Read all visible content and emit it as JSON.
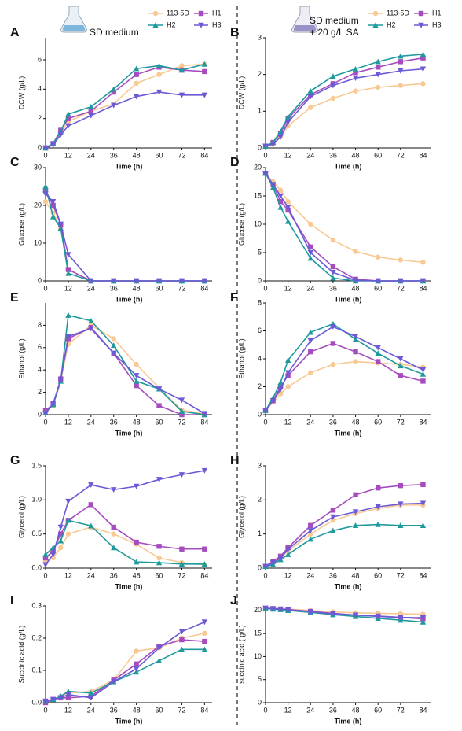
{
  "chart_data": [
    {
      "type": "line",
      "label": "A",
      "annotations": [
        "SD medium"
      ],
      "legend": true,
      "x_label": "Time (h)",
      "y_label": "DCW (g/L)",
      "x": [
        0,
        4,
        8,
        12,
        24,
        36,
        48,
        60,
        72,
        84
      ],
      "xlim": [
        0,
        88
      ],
      "xticks": [
        0,
        12,
        24,
        36,
        48,
        60,
        72,
        84
      ],
      "ylim": [
        0,
        7.5
      ],
      "yticks": [
        0,
        2,
        4,
        6
      ],
      "series": [
        {
          "name": "113-5D",
          "color": "#f8c994",
          "marker": "circle",
          "values": [
            0,
            0.3,
            1.0,
            1.8,
            2.5,
            3.0,
            4.4,
            5.0,
            5.6,
            5.7
          ]
        },
        {
          "name": "H1",
          "color": "#a64cbf",
          "marker": "square",
          "values": [
            0,
            0.3,
            1.2,
            2.0,
            2.5,
            3.8,
            5.0,
            5.5,
            5.3,
            5.2
          ]
        },
        {
          "name": "H2",
          "color": "#1f9a9c",
          "marker": "triangle-up",
          "values": [
            0,
            0.3,
            1.1,
            2.3,
            2.8,
            4.0,
            5.4,
            5.6,
            5.3,
            5.7
          ]
        },
        {
          "name": "H3",
          "color": "#6a5ad6",
          "marker": "triangle-down",
          "values": [
            0,
            0.2,
            0.9,
            1.5,
            2.2,
            2.9,
            3.5,
            3.8,
            3.6,
            3.6
          ]
        }
      ]
    },
    {
      "type": "line",
      "label": "B",
      "annotations": [
        "SD medium",
        "+ 20 g/L SA"
      ],
      "legend": true,
      "x_label": "Time (h)",
      "y_label": "DCW (g/L)",
      "x": [
        0,
        4,
        8,
        12,
        24,
        36,
        48,
        60,
        72,
        84
      ],
      "xlim": [
        0,
        88
      ],
      "xticks": [
        0,
        12,
        24,
        36,
        48,
        60,
        72,
        84
      ],
      "ylim": [
        0,
        3
      ],
      "yticks": [
        0,
        1,
        2,
        3
      ],
      "series": [
        {
          "name": "113-5D",
          "color": "#f8c994",
          "marker": "circle",
          "values": [
            0.05,
            0.1,
            0.3,
            0.6,
            1.1,
            1.35,
            1.55,
            1.65,
            1.7,
            1.75
          ]
        },
        {
          "name": "H1",
          "color": "#a64cbf",
          "marker": "square",
          "values": [
            0.05,
            0.15,
            0.4,
            0.8,
            1.45,
            1.75,
            2.05,
            2.2,
            2.35,
            2.45
          ]
        },
        {
          "name": "H2",
          "color": "#1f9a9c",
          "marker": "triangle-up",
          "values": [
            0.05,
            0.15,
            0.45,
            0.85,
            1.55,
            1.95,
            2.15,
            2.35,
            2.5,
            2.55
          ]
        },
        {
          "name": "H3",
          "color": "#6a5ad6",
          "marker": "triangle-down",
          "values": [
            0.05,
            0.1,
            0.3,
            0.7,
            1.4,
            1.7,
            1.9,
            2.0,
            2.1,
            2.15
          ]
        }
      ]
    },
    {
      "type": "line",
      "label": "C",
      "x_label": "Time (h)",
      "y_label": "Glucose (g/L)",
      "x": [
        0,
        4,
        8,
        12,
        24,
        36,
        48,
        60,
        72,
        84
      ],
      "xlim": [
        0,
        88
      ],
      "xticks": [
        0,
        12,
        24,
        36,
        48,
        60,
        72,
        84
      ],
      "ylim": [
        0,
        30
      ],
      "yticks": [
        0,
        10,
        20,
        30
      ],
      "series": [
        {
          "name": "113-5D",
          "color": "#f8c994",
          "marker": "circle",
          "values": [
            21,
            18,
            14,
            3,
            0,
            0,
            0,
            0,
            0,
            0
          ]
        },
        {
          "name": "H1",
          "color": "#a64cbf",
          "marker": "square",
          "values": [
            24,
            20,
            15,
            3,
            0,
            0,
            0,
            0,
            0,
            0
          ]
        },
        {
          "name": "H2",
          "color": "#1f9a9c",
          "marker": "triangle-up",
          "values": [
            25,
            17,
            14,
            2,
            0,
            0,
            0,
            0,
            0,
            0
          ]
        },
        {
          "name": "H3",
          "color": "#6a5ad6",
          "marker": "triangle-down",
          "values": [
            23,
            21,
            15,
            7,
            0,
            0,
            0,
            0,
            0,
            0
          ]
        }
      ]
    },
    {
      "type": "line",
      "label": "D",
      "x_label": "Time (h)",
      "y_label": "Glucose (g/L)",
      "x": [
        0,
        4,
        8,
        12,
        24,
        36,
        48,
        60,
        72,
        84
      ],
      "xlim": [
        0,
        88
      ],
      "xticks": [
        0,
        12,
        24,
        36,
        48,
        60,
        72,
        84
      ],
      "ylim": [
        0,
        20
      ],
      "yticks": [
        0,
        5,
        10,
        15,
        20
      ],
      "series": [
        {
          "name": "113-5D",
          "color": "#f8c994",
          "marker": "circle",
          "values": [
            19,
            17.5,
            16,
            14,
            10,
            7.2,
            5.2,
            4.2,
            3.7,
            3.3
          ]
        },
        {
          "name": "H1",
          "color": "#a64cbf",
          "marker": "square",
          "values": [
            19,
            17,
            14,
            12.5,
            6,
            2.5,
            0.3,
            0,
            0,
            0
          ]
        },
        {
          "name": "H2",
          "color": "#1f9a9c",
          "marker": "triangle-up",
          "values": [
            19,
            16.5,
            13,
            10.5,
            4,
            0.5,
            0,
            0,
            0,
            0
          ]
        },
        {
          "name": "H3",
          "color": "#6a5ad6",
          "marker": "triangle-down",
          "values": [
            19,
            17,
            15,
            13,
            5,
            1.5,
            0.1,
            0,
            0,
            0
          ]
        }
      ]
    },
    {
      "type": "line",
      "label": "E",
      "x_label": "Time (h)",
      "y_label": "Ethanol (g/L)",
      "x": [
        0,
        4,
        8,
        12,
        24,
        36,
        48,
        60,
        72,
        84
      ],
      "xlim": [
        0,
        88
      ],
      "xticks": [
        0,
        12,
        24,
        36,
        48,
        60,
        72,
        84
      ],
      "ylim": [
        0,
        10
      ],
      "yticks": [
        0,
        2,
        4,
        6,
        8
      ],
      "series": [
        {
          "name": "113-5D",
          "color": "#f8c994",
          "marker": "circle",
          "values": [
            0.3,
            0.8,
            3.0,
            6.3,
            8.0,
            6.8,
            4.5,
            2.4,
            0.4,
            0.1
          ]
        },
        {
          "name": "H1",
          "color": "#a64cbf",
          "marker": "square",
          "values": [
            0.4,
            0.9,
            3.2,
            6.8,
            7.8,
            5.5,
            2.6,
            0.8,
            0,
            0
          ]
        },
        {
          "name": "H2",
          "color": "#1f9a9c",
          "marker": "triangle-up",
          "values": [
            0.2,
            0.9,
            3.0,
            8.9,
            8.4,
            6.2,
            3.0,
            2.3,
            0.3,
            0
          ]
        },
        {
          "name": "H3",
          "color": "#6a5ad6",
          "marker": "triangle-down",
          "values": [
            0.1,
            1.0,
            3.1,
            7.0,
            7.7,
            5.5,
            3.5,
            2.3,
            1.3,
            0.1
          ]
        }
      ]
    },
    {
      "type": "line",
      "label": "F",
      "x_label": "Time (h)",
      "y_label": "Ethanol (g/L)",
      "x": [
        0,
        4,
        8,
        12,
        24,
        36,
        48,
        60,
        72,
        84
      ],
      "xlim": [
        0,
        88
      ],
      "xticks": [
        0,
        12,
        24,
        36,
        48,
        60,
        72,
        84
      ],
      "ylim": [
        0,
        8
      ],
      "yticks": [
        0,
        2,
        4,
        6,
        8
      ],
      "series": [
        {
          "name": "113-5D",
          "color": "#f8c994",
          "marker": "circle",
          "values": [
            0.3,
            0.9,
            1.5,
            2.0,
            3.0,
            3.6,
            3.8,
            3.7,
            3.6,
            3.4
          ]
        },
        {
          "name": "H1",
          "color": "#a64cbf",
          "marker": "square",
          "values": [
            0.3,
            1.0,
            2.0,
            2.8,
            4.5,
            5.1,
            4.5,
            3.8,
            2.8,
            2.4
          ]
        },
        {
          "name": "H2",
          "color": "#1f9a9c",
          "marker": "triangle-up",
          "values": [
            0.3,
            1.2,
            2.3,
            3.9,
            5.9,
            6.5,
            5.4,
            4.4,
            3.5,
            2.9
          ]
        },
        {
          "name": "H3",
          "color": "#6a5ad6",
          "marker": "triangle-down",
          "values": [
            0.3,
            1.0,
            1.8,
            3.0,
            5.3,
            6.3,
            5.6,
            4.8,
            4.0,
            3.2
          ]
        }
      ]
    },
    {
      "type": "line",
      "label": "G",
      "x_label": "Time (h)",
      "y_label": "Glycerol (g/L)",
      "x": [
        0,
        4,
        8,
        12,
        24,
        36,
        48,
        60,
        72,
        84
      ],
      "xlim": [
        0,
        88
      ],
      "xticks": [
        0,
        12,
        24,
        36,
        48,
        60,
        72,
        84
      ],
      "ylim": [
        0,
        1.5
      ],
      "yticks": [
        {
          "value": 0,
          "label": "0.0"
        },
        0.5,
        {
          "value": 1,
          "label": "1.0"
        },
        1.5
      ],
      "series": [
        {
          "name": "113-5D",
          "color": "#f8c994",
          "marker": "circle",
          "values": [
            0.1,
            0.15,
            0.3,
            0.5,
            0.6,
            0.5,
            0.35,
            0.15,
            0.08,
            0.05
          ]
        },
        {
          "name": "H1",
          "color": "#a64cbf",
          "marker": "square",
          "values": [
            0.15,
            0.25,
            0.5,
            0.7,
            0.93,
            0.6,
            0.38,
            0.32,
            0.28,
            0.28
          ]
        },
        {
          "name": "H2",
          "color": "#1f9a9c",
          "marker": "triangle-up",
          "values": [
            0.2,
            0.3,
            0.4,
            0.7,
            0.62,
            0.3,
            0.09,
            0.08,
            0.06,
            0.06
          ]
        },
        {
          "name": "H3",
          "color": "#6a5ad6",
          "marker": "triangle-down",
          "values": [
            0.05,
            0.2,
            0.6,
            0.98,
            1.22,
            1.15,
            1.2,
            1.3,
            1.37,
            1.43
          ]
        }
      ]
    },
    {
      "type": "line",
      "label": "H",
      "x_label": "Time (h)",
      "y_label": "Glycerol (g/L)",
      "x": [
        0,
        4,
        8,
        12,
        24,
        36,
        48,
        60,
        72,
        84
      ],
      "xlim": [
        0,
        88
      ],
      "xticks": [
        0,
        12,
        24,
        36,
        48,
        60,
        72,
        84
      ],
      "ylim": [
        0,
        3
      ],
      "yticks": [
        0,
        1,
        2,
        3
      ],
      "series": [
        {
          "name": "113-5D",
          "color": "#f8c994",
          "marker": "circle",
          "values": [
            0.05,
            0.15,
            0.3,
            0.5,
            1.0,
            1.4,
            1.6,
            1.75,
            1.85,
            1.85
          ]
        },
        {
          "name": "H1",
          "color": "#a64cbf",
          "marker": "square",
          "values": [
            0.05,
            0.2,
            0.35,
            0.6,
            1.25,
            1.7,
            2.15,
            2.35,
            2.42,
            2.45
          ]
        },
        {
          "name": "H2",
          "color": "#1f9a9c",
          "marker": "triangle-up",
          "values": [
            0.05,
            0.1,
            0.25,
            0.4,
            0.85,
            1.1,
            1.25,
            1.28,
            1.25,
            1.25
          ]
        },
        {
          "name": "H3",
          "color": "#6a5ad6",
          "marker": "triangle-down",
          "values": [
            0.05,
            0.15,
            0.3,
            0.55,
            1.1,
            1.5,
            1.65,
            1.8,
            1.88,
            1.9
          ]
        }
      ]
    },
    {
      "type": "line",
      "label": "I",
      "x_label": "Time (h)",
      "y_label": "Succinic acid (g/L)",
      "x": [
        0,
        4,
        8,
        12,
        24,
        36,
        48,
        60,
        72,
        84
      ],
      "xlim": [
        0,
        88
      ],
      "xticks": [
        0,
        12,
        24,
        36,
        48,
        60,
        72,
        84
      ],
      "ylim": [
        0,
        0.3
      ],
      "yticks": [
        {
          "value": 0,
          "label": "0.0"
        },
        0.1,
        0.2,
        0.3
      ],
      "series": [
        {
          "name": "113-5D",
          "color": "#f8c994",
          "marker": "circle",
          "values": [
            0.005,
            0.01,
            0.02,
            0.03,
            0.035,
            0.07,
            0.16,
            0.17,
            0.2,
            0.215
          ]
        },
        {
          "name": "H1",
          "color": "#a64cbf",
          "marker": "square",
          "values": [
            0,
            0.01,
            0.015,
            0.015,
            0.02,
            0.07,
            0.12,
            0.175,
            0.195,
            0.19
          ]
        },
        {
          "name": "H2",
          "color": "#1f9a9c",
          "marker": "triangle-up",
          "values": [
            0.005,
            0.01,
            0.02,
            0.035,
            0.03,
            0.065,
            0.095,
            0.13,
            0.165,
            0.165
          ]
        },
        {
          "name": "H3",
          "color": "#6a5ad6",
          "marker": "triangle-down",
          "values": [
            0.005,
            0.01,
            0.015,
            0.025,
            0.015,
            0.065,
            0.105,
            0.17,
            0.22,
            0.25
          ]
        }
      ]
    },
    {
      "type": "line",
      "label": "J",
      "x_label": "Time (h)",
      "y_label": "succinic acid ( g/L)",
      "x": [
        0,
        4,
        8,
        12,
        24,
        36,
        48,
        60,
        72,
        84
      ],
      "xlim": [
        0,
        88
      ],
      "xticks": [
        0,
        12,
        24,
        36,
        48,
        60,
        72,
        84
      ],
      "ylim": [
        0,
        21
      ],
      "yticks": [
        0,
        5,
        10,
        15,
        20
      ],
      "series": [
        {
          "name": "113-5D",
          "color": "#f8c994",
          "marker": "circle",
          "values": [
            20.5,
            20.5,
            20.4,
            20.3,
            20.0,
            19.7,
            19.5,
            19.4,
            19.3,
            19.2
          ]
        },
        {
          "name": "H1",
          "color": "#a64cbf",
          "marker": "square",
          "values": [
            20.5,
            20.4,
            20.3,
            20.2,
            19.8,
            19.4,
            19.0,
            18.8,
            18.5,
            18.2
          ]
        },
        {
          "name": "H2",
          "color": "#1f9a9c",
          "marker": "triangle-up",
          "values": [
            20.4,
            20.3,
            20.2,
            20.0,
            19.6,
            19.1,
            18.7,
            18.3,
            17.9,
            17.5
          ]
        },
        {
          "name": "H3",
          "color": "#6a5ad6",
          "marker": "triangle-down",
          "values": [
            20.5,
            20.4,
            20.3,
            20.2,
            19.7,
            19.3,
            19.0,
            18.7,
            18.5,
            18.4
          ]
        }
      ]
    }
  ]
}
